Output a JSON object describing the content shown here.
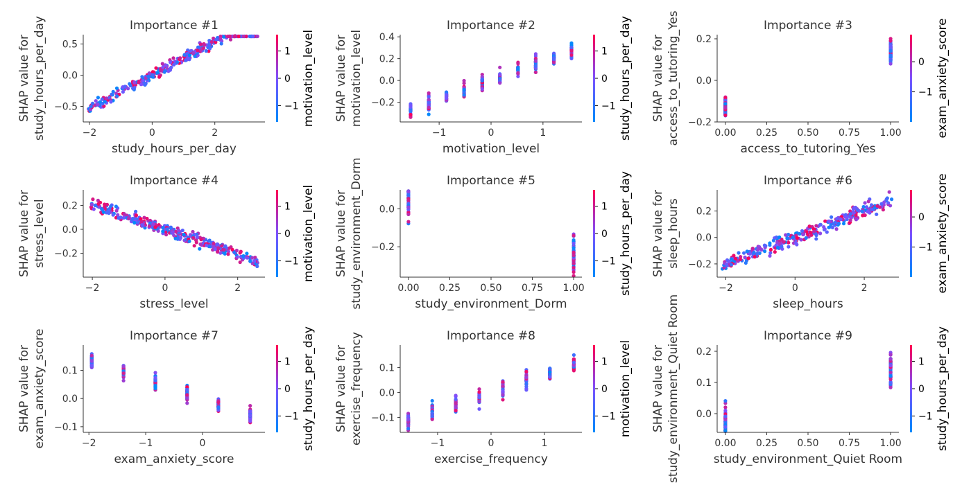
{
  "colors": {
    "low": "#008bfb",
    "mid": "#7c52ff",
    "high": "#ff0052",
    "axis": "#333333"
  },
  "chart_data": [
    {
      "type": "scatter",
      "title": "Importance #1",
      "xlabel": "study_hours_per_day",
      "ylabel": [
        "SHAP value for",
        "study_hours_per_day"
      ],
      "xlim": [
        -2.2,
        3.6
      ],
      "ylim": [
        -0.75,
        0.65
      ],
      "xticks": [
        -2,
        0,
        2
      ],
      "yticks": [
        -0.5,
        0.0,
        0.5
      ],
      "xtick_labels": [
        "−2",
        "0",
        "2"
      ],
      "ytick_labels": [
        "−0.5",
        "0.0",
        "0.5"
      ],
      "color_feature": "motivation_level",
      "cbar_ticks": [
        -1,
        0,
        1
      ],
      "cbar_tick_labels": [
        "−1",
        "0",
        "1"
      ],
      "cbar_range": [
        -1.6,
        1.6
      ],
      "gen": {
        "mode": "linear",
        "xmin": -2.1,
        "xmax": 3.4,
        "slope": 0.27,
        "intercept": 0.0,
        "noise": 0.045,
        "n": 320
      }
    },
    {
      "type": "scatter",
      "title": "Importance #2",
      "xlabel": "motivation_level",
      "ylabel": [
        "SHAP value for",
        "motivation_level"
      ],
      "xlim": [
        -1.75,
        1.75
      ],
      "ylim": [
        -0.38,
        0.42
      ],
      "xticks": [
        -1,
        0,
        1
      ],
      "yticks": [
        -0.2,
        0.0,
        0.2,
        0.4
      ],
      "xtick_labels": [
        "−1",
        "0",
        "1"
      ],
      "ytick_labels": [
        "−0.2",
        "0.0",
        "0.2",
        "0.4"
      ],
      "color_feature": "study_hours_per_day",
      "cbar_ticks": [
        -1,
        0,
        1
      ],
      "cbar_tick_labels": [
        "−1",
        "0",
        "1"
      ],
      "cbar_range": [
        -1.6,
        1.6
      ],
      "gen": {
        "mode": "discrete",
        "levels": [
          -1.55,
          -1.2,
          -0.86,
          -0.52,
          -0.17,
          0.17,
          0.52,
          0.86,
          1.21,
          1.55
        ],
        "slope": 0.175,
        "intercept": 0.0,
        "noise": 0.03,
        "jitter": 0.0,
        "n": 320
      }
    },
    {
      "type": "scatter",
      "title": "Importance #3",
      "xlabel": "access_to_tutoring_Yes",
      "ylabel": [
        "SHAP value for",
        "access_to_tutoring_Yes"
      ],
      "xlim": [
        -0.05,
        1.05
      ],
      "ylim": [
        -0.2,
        0.22
      ],
      "xticks": [
        0,
        0.25,
        0.5,
        0.75,
        1.0
      ],
      "yticks": [
        -0.2,
        0.0,
        0.2
      ],
      "xtick_labels": [
        "0.00",
        "0.25",
        "0.50",
        "0.75",
        "1.00"
      ],
      "ytick_labels": [
        "−0.2",
        "0.0",
        "0.2"
      ],
      "color_feature": "exam_anxiety_score",
      "cbar_ticks": [
        -1,
        0
      ],
      "cbar_tick_labels": [
        "−1",
        "0"
      ],
      "cbar_range": [
        -2.0,
        0.9
      ],
      "gen": {
        "mode": "binary",
        "levels": [
          0,
          1
        ],
        "means": [
          -0.13,
          0.14
        ],
        "noise": 0.02,
        "n": 300
      }
    },
    {
      "type": "scatter",
      "title": "Importance #4",
      "xlabel": "stress_level",
      "ylabel": [
        "SHAP value for",
        "stress_level"
      ],
      "xlim": [
        -2.25,
        2.75
      ],
      "ylim": [
        -0.4,
        0.33
      ],
      "xticks": [
        -2,
        0,
        2
      ],
      "yticks": [
        -0.2,
        0.0,
        0.2
      ],
      "xtick_labels": [
        "−2",
        "0",
        "2"
      ],
      "ytick_labels": [
        "−0.2",
        "0.0",
        "0.2"
      ],
      "color_feature": "motivation_level",
      "cbar_ticks": [
        -1,
        0,
        1
      ],
      "cbar_tick_labels": [
        "−1",
        "0",
        "1"
      ],
      "cbar_range": [
        -1.6,
        1.6
      ],
      "gen": {
        "mode": "linear",
        "xmin": -2.1,
        "xmax": 2.55,
        "slope": -0.105,
        "intercept": 0.0,
        "noise": 0.025,
        "n": 320
      }
    },
    {
      "type": "scatter",
      "title": "Importance #5",
      "xlabel": "study_environment_Dorm",
      "ylabel": [
        "SHAP value for",
        "study_environment_Dorm"
      ],
      "xlim": [
        -0.05,
        1.05
      ],
      "ylim": [
        -0.36,
        0.1
      ],
      "xticks": [
        0,
        0.25,
        0.5,
        0.75,
        1.0
      ],
      "yticks": [
        -0.2,
        0.0
      ],
      "xtick_labels": [
        "0.00",
        "0.25",
        "0.50",
        "0.75",
        "1.00"
      ],
      "ytick_labels": [
        "−0.2",
        "0.0"
      ],
      "color_feature": "study_hours_per_day",
      "cbar_ticks": [
        -1,
        0,
        1
      ],
      "cbar_tick_labels": [
        "−1",
        "0",
        "1"
      ],
      "cbar_range": [
        -1.6,
        1.6
      ],
      "gen": {
        "mode": "binary",
        "levels": [
          0,
          1
        ],
        "means": [
          0.06,
          -0.25
        ],
        "noise": 0.05,
        "n": 120
      }
    },
    {
      "type": "scatter",
      "title": "Importance #6",
      "xlabel": "sleep_hours",
      "ylabel": [
        "SHAP value for",
        "sleep_hours"
      ],
      "xlim": [
        -2.25,
        3.0
      ],
      "ylim": [
        -0.3,
        0.36
      ],
      "xticks": [
        -2,
        0,
        2
      ],
      "yticks": [
        -0.2,
        0.0,
        0.2
      ],
      "xtick_labels": [
        "−2",
        "0",
        "2"
      ],
      "ytick_labels": [
        "−0.2",
        "0.0",
        "0.2"
      ],
      "color_feature": "exam_anxiety_score",
      "cbar_ticks": [
        -1,
        0
      ],
      "cbar_tick_labels": [
        "−1",
        "0"
      ],
      "cbar_range": [
        -2.0,
        0.9
      ],
      "gen": {
        "mode": "linear",
        "xmin": -2.1,
        "xmax": 2.8,
        "slope": 0.1,
        "intercept": 0.0,
        "noise": 0.025,
        "n": 320
      }
    },
    {
      "type": "scatter",
      "title": "Importance #7",
      "xlabel": "exam_anxiety_score",
      "ylabel": [
        "SHAP value for",
        "exam_anxiety_score"
      ],
      "xlim": [
        -2.1,
        1.1
      ],
      "ylim": [
        -0.12,
        0.19
      ],
      "xticks": [
        -2,
        -1,
        0
      ],
      "yticks": [
        -0.1,
        0.0,
        0.1
      ],
      "xtick_labels": [
        "−2",
        "−1",
        "0"
      ],
      "ytick_labels": [
        "−0.1",
        "0.0",
        "0.1"
      ],
      "color_feature": "study_hours_per_day",
      "cbar_ticks": [
        -1,
        0,
        1
      ],
      "cbar_tick_labels": [
        "−1",
        "0",
        "1"
      ],
      "cbar_range": [
        -1.6,
        1.6
      ],
      "gen": {
        "mode": "discrete",
        "levels": [
          -1.95,
          -1.39,
          -0.83,
          -0.27,
          0.28,
          0.84
        ],
        "slope": -0.07,
        "intercept": 0.0,
        "noise": 0.012,
        "jitter": 0.0,
        "n": 300
      }
    },
    {
      "type": "scatter",
      "title": "Importance #8",
      "xlabel": "exercise_frequency",
      "ylabel": [
        "SHAP value for",
        "exercise_frequency"
      ],
      "xlim": [
        -1.7,
        1.7
      ],
      "ylim": [
        -0.16,
        0.19
      ],
      "xticks": [
        -1,
        0,
        1
      ],
      "yticks": [
        -0.1,
        0.0,
        0.1
      ],
      "xtick_labels": [
        "−1",
        "0",
        "1"
      ],
      "ytick_labels": [
        "−0.1",
        "0.0",
        "0.1"
      ],
      "color_feature": "motivation_level",
      "cbar_ticks": [
        -1,
        0,
        1
      ],
      "cbar_tick_labels": [
        "−1",
        "0",
        "1"
      ],
      "cbar_range": [
        -1.6,
        1.6
      ],
      "gen": {
        "mode": "discrete",
        "levels": [
          -1.55,
          -1.1,
          -0.66,
          -0.22,
          0.22,
          0.66,
          1.1,
          1.55
        ],
        "slope": 0.073,
        "intercept": 0.0,
        "noise": 0.015,
        "jitter": 0.0,
        "n": 300
      }
    },
    {
      "type": "scatter",
      "title": "Importance #9",
      "xlabel": "study_environment_Quiet Room",
      "ylabel": [
        "SHAP value for",
        "study_environment_Quiet Room"
      ],
      "xlim": [
        -0.05,
        1.05
      ],
      "ylim": [
        -0.06,
        0.22
      ],
      "xticks": [
        0,
        0.25,
        0.5,
        0.75,
        1.0
      ],
      "yticks": [
        0.0,
        0.1,
        0.2
      ],
      "xtick_labels": [
        "0.00",
        "0.25",
        "0.50",
        "0.75",
        "1.00"
      ],
      "ytick_labels": [
        "0.0",
        "0.1",
        "0.2"
      ],
      "color_feature": "study_hours_per_day",
      "cbar_ticks": [
        -1,
        0,
        1
      ],
      "cbar_tick_labels": [
        "−1",
        "0",
        "1"
      ],
      "cbar_range": [
        -1.6,
        1.6
      ],
      "gen": {
        "mode": "binary",
        "levels": [
          0,
          1
        ],
        "means": [
          -0.035,
          0.14
        ],
        "noise": 0.025,
        "n": 140
      }
    }
  ]
}
